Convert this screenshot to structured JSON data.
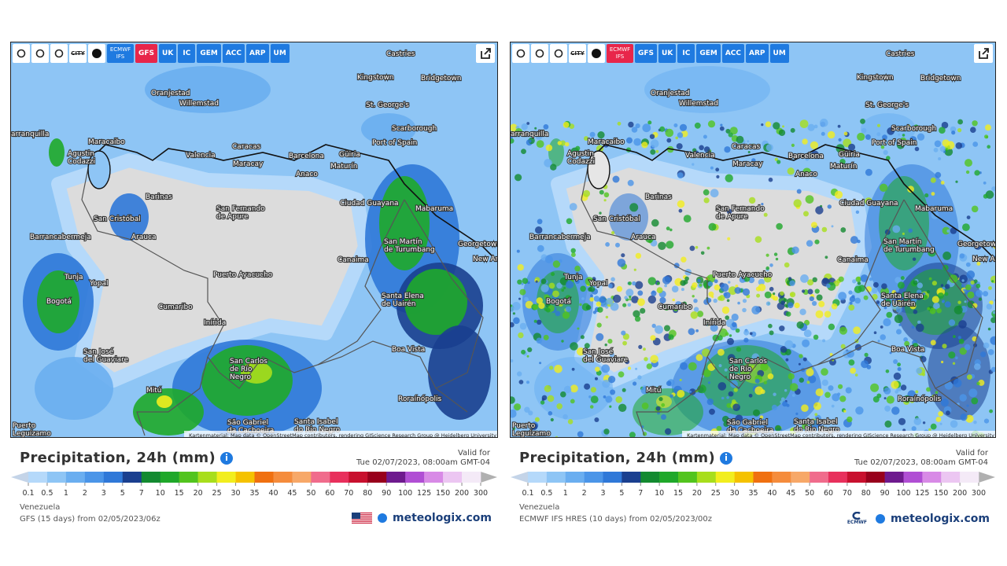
{
  "map_labels": [
    [
      "Castries"
    ],
    [
      "Kingstown"
    ],
    [
      "Bridgetown"
    ],
    [
      "Oranjestad"
    ],
    [
      "Willemstad"
    ],
    [
      "St. George's"
    ],
    [
      "Scarborough"
    ],
    [
      "arranquilla"
    ],
    [
      "Maracaibo"
    ],
    [
      "Caracas"
    ],
    [
      "Port of Spain"
    ],
    [
      "Agustin",
      "Codazzi"
    ],
    [
      "Valencia"
    ],
    [
      "Barcelona"
    ],
    [
      "Güiria"
    ],
    [
      "Maracay"
    ],
    [
      "Maturín"
    ],
    [
      "Anaco"
    ],
    [
      "Barinas"
    ],
    [
      "Ciudad Guayana"
    ],
    [
      "Mabaruma"
    ],
    [
      "San Fernando",
      "de Apure"
    ],
    [
      "San Cristóbal"
    ],
    [
      "Barrancabermeja"
    ],
    [
      "Arauca"
    ],
    [
      "San Martín",
      "de Turumbang"
    ],
    [
      "Georgetown"
    ],
    [
      "New Amsterdam"
    ],
    [
      "Canaima"
    ],
    [
      "Tunja"
    ],
    [
      "Yopal"
    ],
    [
      "Puerto Ayacucho"
    ],
    [
      "Santa Elena",
      "de Uairén"
    ],
    [
      "Bogotá"
    ],
    [
      "Cumaribo"
    ],
    [
      "Inírida"
    ],
    [
      "Boa Vista"
    ],
    [
      "San José",
      "del Guaviare"
    ],
    [
      "San Carlos",
      "de Río",
      "Negro"
    ],
    [
      "Mitú"
    ],
    [
      "Roraínópolis"
    ],
    [
      "São Gabriel",
      "da Cachoeira"
    ],
    [
      "Santa Isabel",
      "do Rio Negro"
    ],
    [
      "Puerto",
      "Leguízamo"
    ]
  ],
  "legend": {
    "labels": [
      "0.1",
      "0.5",
      "1",
      "2",
      "3",
      "5",
      "7",
      "10",
      "15",
      "20",
      "25",
      "30",
      "35",
      "40",
      "45",
      "50",
      "60",
      "70",
      "80",
      "90",
      "100",
      "125",
      "150",
      "200",
      "300"
    ],
    "colors": [
      "#b5d9fa",
      "#8ec5f5",
      "#6aaef0",
      "#4b95e8",
      "#2f78d8",
      "#1a3f8f",
      "#138a30",
      "#1fa82a",
      "#52c41e",
      "#a8de1c",
      "#f2ee1e",
      "#f5c200",
      "#f07010",
      "#f58c3c",
      "#f7a868",
      "#f06c8c",
      "#e8305c",
      "#c8102e",
      "#98001c",
      "#6e1a8e",
      "#b04ed4",
      "#d88ae6",
      "#ecc6f2",
      "#f4eaf7"
    ],
    "arrow_colors": [
      "#c4d4e8",
      "#b0b0b0"
    ]
  },
  "panels": [
    {
      "style": "smooth",
      "city": "CITY",
      "buttons": [
        {
          "label": "ECMWF IFS",
          "color": "#1f7ae0"
        },
        {
          "label": "GFS",
          "color": "#e8264a"
        },
        {
          "label": "UK",
          "color": "#1f7ae0"
        },
        {
          "label": "IC",
          "color": "#1f7ae0"
        },
        {
          "label": "GEM",
          "color": "#1f7ae0"
        },
        {
          "label": "ACC",
          "color": "#1f7ae0"
        },
        {
          "label": "ARP",
          "color": "#1f7ae0"
        },
        {
          "label": "UM",
          "color": "#1f7ae0"
        }
      ],
      "attribution": "Kartenmaterial: Map data © OpenStreetMap contributors, rendering GIScience Research Group @ Heidelberg University",
      "title": "Precipitation, 24h (mm)",
      "valid_label": "Valid for",
      "valid_time": "Tue 02/07/2023, 08:00am GMT-04",
      "region": "Venezuela",
      "model": "GFS  (15 days)  from 02/05/2023/06z",
      "brand": "meteologix.com"
    },
    {
      "style": "noisy",
      "city": "CITY",
      "buttons": [
        {
          "label": "ECMWF IFS",
          "color": "#e8264a"
        },
        {
          "label": "GFS",
          "color": "#1f7ae0"
        },
        {
          "label": "UK",
          "color": "#1f7ae0"
        },
        {
          "label": "IC",
          "color": "#1f7ae0"
        },
        {
          "label": "GEM",
          "color": "#1f7ae0"
        },
        {
          "label": "ACC",
          "color": "#1f7ae0"
        },
        {
          "label": "ARP",
          "color": "#1f7ae0"
        },
        {
          "label": "UM",
          "color": "#1f7ae0"
        }
      ],
      "attribution": "Kartenmaterial: Map data © OpenStreetMap contributors, rendering GIScience Research Group @ Heidelberg University",
      "title": "Precipitation, 24h (mm)",
      "valid_label": "Valid for",
      "valid_time": "Tue 02/07/2023, 08:00am GMT-04",
      "region": "Venezuela",
      "model": "ECMWF IFS HRES  (10 days)  from 02/05/2023/00z",
      "brand": "meteologix.com",
      "logo_text": "ECMWF"
    }
  ]
}
